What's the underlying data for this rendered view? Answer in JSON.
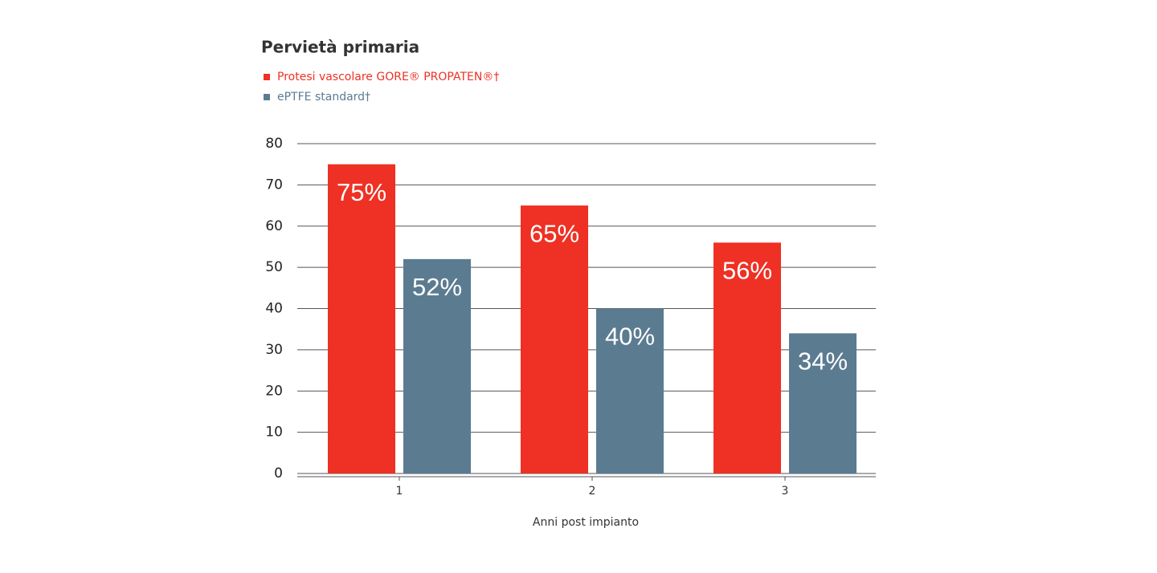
{
  "chart_data": {
    "type": "bar",
    "title": "Pervietà primaria",
    "x_label": "Anni post impianto",
    "categories": [
      "1",
      "2",
      "3"
    ],
    "series": [
      {
        "name": "Protesi vascolare GORE® PROPATEN®†",
        "color": "#ee3124",
        "values": [
          75,
          65,
          56
        ],
        "value_labels": [
          "75%",
          "65%",
          "56%"
        ]
      },
      {
        "name": "ePTFE standard†",
        "color": "#5b7b91",
        "values": [
          52,
          40,
          34
        ],
        "value_labels": [
          "52%",
          "40%",
          "34%"
        ]
      }
    ],
    "ylim": [
      0,
      80
    ],
    "yticks": [
      0,
      10,
      20,
      30,
      40,
      50,
      60,
      70,
      80
    ],
    "grid": true
  }
}
